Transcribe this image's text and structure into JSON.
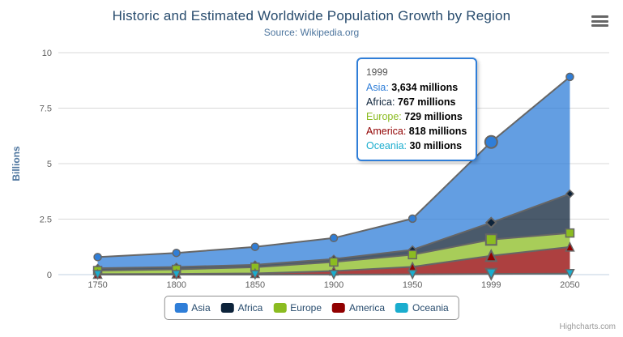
{
  "chart_data": {
    "type": "area",
    "stacking": "normal",
    "title": "Historic and Estimated Worldwide Population Growth by Region",
    "subtitle": "Source: Wikipedia.org",
    "ylabel": "Billions",
    "xlabel": "",
    "unit": "millions",
    "ylim": [
      0,
      10
    ],
    "yticks": [
      "0",
      "2.5",
      "5",
      "7.5",
      "10"
    ],
    "grid": "horizontal",
    "legend_position": "bottom",
    "categories": [
      "1750",
      "1800",
      "1850",
      "1900",
      "1950",
      "1999",
      "2050"
    ],
    "series": [
      {
        "name": "Asia",
        "color": "#2f7ed8",
        "marker": "circle",
        "values": [
          502,
          635,
          809,
          947,
          1402,
          3634,
          5268
        ]
      },
      {
        "name": "Africa",
        "color": "#0d233a",
        "marker": "diamond",
        "values": [
          106,
          107,
          111,
          133,
          221,
          767,
          1766
        ]
      },
      {
        "name": "Europe",
        "color": "#8bbc21",
        "marker": "square",
        "values": [
          163,
          203,
          276,
          408,
          547,
          729,
          628
        ]
      },
      {
        "name": "America",
        "color": "#910000",
        "marker": "triangle",
        "values": [
          18,
          31,
          54,
          156,
          339,
          818,
          1201
        ]
      },
      {
        "name": "Oceania",
        "color": "#1aadce",
        "marker": "triangle-down",
        "values": [
          2,
          2,
          2,
          6,
          13,
          30,
          46
        ]
      }
    ],
    "line_color": "#666666",
    "fill_opacity": 0.75,
    "hovered_category": "1999",
    "hovered_category_index": 5
  },
  "tooltip": {
    "header": "1999",
    "rows": [
      {
        "name": "Asia",
        "color": "#2f7ed8",
        "value": "3,634 millions"
      },
      {
        "name": "Africa",
        "color": "#0d233a",
        "value": "767 millions"
      },
      {
        "name": "Europe",
        "color": "#8bbc21",
        "value": "729 millions"
      },
      {
        "name": "America",
        "color": "#910000",
        "value": "818 millions"
      },
      {
        "name": "Oceania",
        "color": "#1aadce",
        "value": "30 millions"
      }
    ]
  },
  "icons": {
    "menu": "hamburger-menu-icon"
  },
  "credits": "Highcharts.com"
}
